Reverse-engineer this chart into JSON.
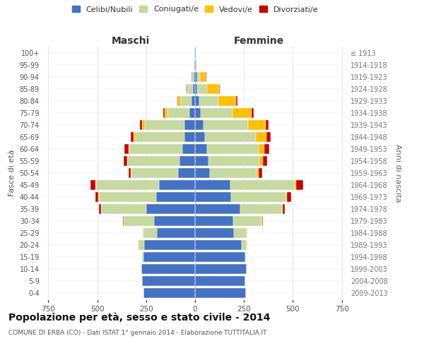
{
  "age_groups": [
    "0-4",
    "5-9",
    "10-14",
    "15-19",
    "20-24",
    "25-29",
    "30-34",
    "35-39",
    "40-44",
    "45-49",
    "50-54",
    "55-59",
    "60-64",
    "65-69",
    "70-74",
    "75-79",
    "80-84",
    "85-89",
    "90-94",
    "95-99",
    "100+"
  ],
  "birth_years": [
    "2009-2013",
    "2004-2008",
    "1999-2003",
    "1994-1998",
    "1989-1993",
    "1984-1988",
    "1979-1983",
    "1974-1978",
    "1969-1973",
    "1964-1968",
    "1959-1963",
    "1954-1958",
    "1949-1953",
    "1944-1948",
    "1939-1943",
    "1934-1938",
    "1929-1933",
    "1924-1928",
    "1919-1923",
    "1914-1918",
    "≤ 1913"
  ],
  "maschi": {
    "celibi": [
      265,
      270,
      275,
      265,
      260,
      195,
      210,
      250,
      200,
      185,
      85,
      80,
      65,
      55,
      55,
      30,
      18,
      10,
      8,
      4,
      2
    ],
    "coniugati": [
      0,
      0,
      0,
      5,
      30,
      70,
      155,
      230,
      290,
      320,
      240,
      265,
      270,
      250,
      200,
      110,
      55,
      25,
      12,
      2,
      0
    ],
    "vedove": [
      0,
      0,
      0,
      0,
      1,
      1,
      1,
      2,
      3,
      5,
      3,
      3,
      5,
      8,
      15,
      15,
      15,
      5,
      0,
      0,
      0
    ],
    "divorziate": [
      0,
      0,
      0,
      0,
      1,
      2,
      4,
      10,
      15,
      25,
      12,
      18,
      20,
      15,
      12,
      8,
      4,
      2,
      0,
      0,
      0
    ]
  },
  "femmine": {
    "celibi": [
      260,
      255,
      265,
      255,
      240,
      200,
      195,
      230,
      185,
      180,
      75,
      70,
      60,
      50,
      45,
      30,
      20,
      12,
      10,
      4,
      2
    ],
    "coniugati": [
      0,
      0,
      0,
      5,
      25,
      65,
      145,
      215,
      280,
      330,
      240,
      260,
      265,
      260,
      225,
      160,
      100,
      50,
      15,
      2,
      0
    ],
    "vedove": [
      0,
      0,
      0,
      0,
      1,
      1,
      2,
      3,
      5,
      8,
      10,
      15,
      30,
      55,
      90,
      100,
      90,
      60,
      30,
      5,
      0
    ],
    "divorziate": [
      0,
      0,
      0,
      0,
      1,
      3,
      5,
      12,
      20,
      35,
      18,
      22,
      25,
      20,
      15,
      10,
      8,
      5,
      2,
      0,
      0
    ]
  },
  "colors": {
    "celibi": "#4472c4",
    "coniugati": "#c5d9a0",
    "vedove": "#ffc000",
    "divorziate": "#cc0000"
  },
  "legend_labels": [
    "Celibi/Nubili",
    "Coniugati/e",
    "Vedovi/e",
    "Divorziati/e"
  ],
  "title": "Popolazione per età, sesso e stato civile - 2014",
  "subtitle": "COMUNE DI ERBA (CO) - Dati ISTAT 1° gennaio 2014 - Elaborazione TUTTITALIA.IT",
  "xlabel_maschi": "Maschi",
  "xlabel_femmine": "Femmine",
  "ylabel_left": "Fasce di età",
  "ylabel_right": "Anni di nascita",
  "xlim": 780,
  "background_color": "#ffffff",
  "grid_color": "#cccccc"
}
